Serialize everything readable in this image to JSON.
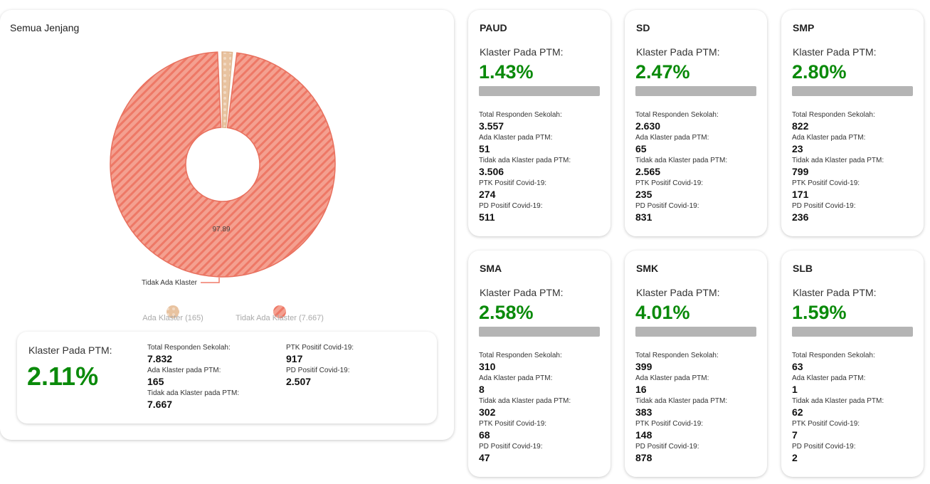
{
  "main": {
    "title": "Semua Jenjang",
    "summary": {
      "label": "Klaster Pada PTM:",
      "percent": "2.11%",
      "stats": [
        {
          "label": "Total Responden Sekolah:",
          "value": "7.832"
        },
        {
          "label": "Ada Klaster pada PTM:",
          "value": "165"
        },
        {
          "label": "Tidak ada Klaster pada PTM:",
          "value": "7.667"
        }
      ],
      "stats2": [
        {
          "label": "PTK Positif Covid-19:",
          "value": "917"
        },
        {
          "label": "PD Positif Covid-19:",
          "value": "2.507"
        }
      ]
    }
  },
  "chart_data": {
    "type": "pie",
    "title": "Semua Jenjang",
    "donut": true,
    "categories": [
      "Ada Klaster",
      "Tidak Ada Klaster"
    ],
    "values": [
      165,
      7667
    ],
    "percent": [
      2.11,
      97.89
    ],
    "data_label": "97.89",
    "callout_label": "Tidak Ada Klaster",
    "legend": [
      "Ada Klaster (165)",
      "Tidak Ada Klaster (7.667)"
    ],
    "legend_position": "bottom",
    "colors": [
      "#e8c3a0",
      "#f07a68"
    ]
  },
  "levels": [
    {
      "name": "PAUD",
      "label": "Klaster Pada PTM:",
      "percent": "1.43%",
      "progress": 1.43,
      "stats": [
        [
          "Total Responden Sekolah:",
          "3.557"
        ],
        [
          "Ada Klaster pada PTM:",
          "51"
        ],
        [
          "Tidak ada Klaster pada PTM:",
          "3.506"
        ],
        [
          "PTK Positif Covid-19:",
          "274"
        ],
        [
          "PD Positif Covid-19:",
          "511"
        ]
      ]
    },
    {
      "name": "SD",
      "label": "Klaster Pada PTM:",
      "percent": "2.47%",
      "progress": 2.47,
      "stats": [
        [
          "Total Responden Sekolah:",
          "2.630"
        ],
        [
          "Ada Klaster pada PTM:",
          "65"
        ],
        [
          "Tidak ada Klaster pada PTM:",
          "2.565"
        ],
        [
          "PTK Positif Covid-19:",
          "235"
        ],
        [
          "PD Positif Covid-19:",
          "831"
        ]
      ]
    },
    {
      "name": "SMP",
      "label": "Klaster Pada PTM:",
      "percent": "2.80%",
      "progress": 2.8,
      "stats": [
        [
          "Total Responden Sekolah:",
          "822"
        ],
        [
          "Ada Klaster pada PTM:",
          "23"
        ],
        [
          "Tidak ada Klaster pada PTM:",
          "799"
        ],
        [
          "PTK Positif Covid-19:",
          "171"
        ],
        [
          "PD Positif Covid-19:",
          "236"
        ]
      ]
    },
    {
      "name": "SMA",
      "label": "Klaster Pada PTM:",
      "percent": "2.58%",
      "progress": 2.58,
      "stats": [
        [
          "Total Responden Sekolah:",
          "310"
        ],
        [
          "Ada Klaster pada PTM:",
          "8"
        ],
        [
          "Tidak ada Klaster pada PTM:",
          "302"
        ],
        [
          "PTK Positif Covid-19:",
          "68"
        ],
        [
          "PD Positif Covid-19:",
          "47"
        ]
      ]
    },
    {
      "name": "SMK",
      "label": "Klaster Pada PTM:",
      "percent": "4.01%",
      "progress": 4.01,
      "stats": [
        [
          "Total Responden Sekolah:",
          "399"
        ],
        [
          "Ada Klaster pada PTM:",
          "16"
        ],
        [
          "Tidak ada Klaster pada PTM:",
          "383"
        ],
        [
          "PTK Positif Covid-19:",
          "148"
        ],
        [
          "PD Positif Covid-19:",
          "878"
        ]
      ]
    },
    {
      "name": "SLB",
      "label": "Klaster Pada PTM:",
      "percent": "1.59%",
      "progress": 1.59,
      "stats": [
        [
          "Total Responden Sekolah:",
          "63"
        ],
        [
          "Ada Klaster pada PTM:",
          "1"
        ],
        [
          "Tidak ada Klaster pada PTM:",
          "62"
        ],
        [
          "PTK Positif Covid-19:",
          "7"
        ],
        [
          "PD Positif Covid-19:",
          "2"
        ]
      ]
    }
  ]
}
